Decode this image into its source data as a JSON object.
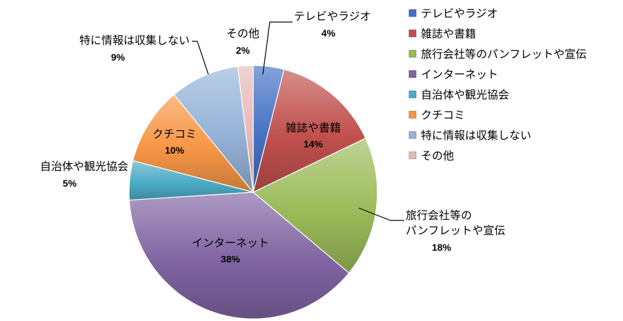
{
  "chart_data": {
    "type": "pie",
    "series": [
      {
        "name": "テレビやラジオ",
        "value": 4,
        "label": "4%",
        "color": "#4472C4",
        "label_lines": [
          "テレビやラジオ"
        ]
      },
      {
        "name": "雑誌や書籍",
        "value": 14,
        "label": "14%",
        "color": "#C0504D",
        "label_lines": [
          "雑誌や書籍"
        ]
      },
      {
        "name": "旅行会社等のパンフレットや宣伝",
        "value": 18,
        "label": "18%",
        "color": "#9BBB59",
        "label_lines": [
          "旅行会社等の",
          "パンフレットや宣伝"
        ]
      },
      {
        "name": "インターネット",
        "value": 38,
        "label": "38%",
        "color": "#8064A2",
        "label_lines": [
          "インターネット"
        ]
      },
      {
        "name": "自治体や観光協会",
        "value": 5,
        "label": "5%",
        "color": "#4BACC6",
        "label_lines": [
          "自治体や観光協会"
        ]
      },
      {
        "name": "クチコミ",
        "value": 10,
        "label": "10%",
        "color": "#F79646",
        "label_lines": [
          "クチコミ"
        ]
      },
      {
        "name": "特に情報は収集しない",
        "value": 9,
        "label": "9%",
        "color": "#95B3D7",
        "label_lines": [
          "特に情報は収集しない"
        ]
      },
      {
        "name": "その他",
        "value": 2,
        "label": "2%",
        "color": "#E6B9B8",
        "label_lines": [
          "その他"
        ]
      }
    ],
    "legend_position": "right"
  }
}
